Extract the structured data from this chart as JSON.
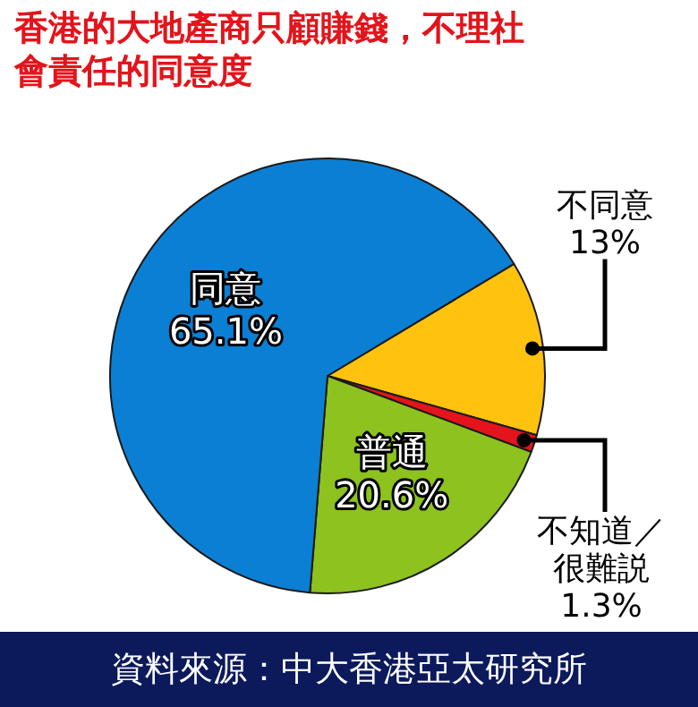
{
  "chart_data": {
    "type": "pie",
    "title": "香港的大地產商只顧賺錢，不理社會責任的同意度",
    "categories": [
      "不同意",
      "不知道／很難説",
      "普通",
      "同意"
    ],
    "values": [
      13,
      1.3,
      20.6,
      65.1
    ],
    "value_labels": [
      "13%",
      "1.3%",
      "20.6%",
      "65.1%"
    ],
    "colors": [
      "#ffc20e",
      "#e3141b",
      "#8dc21f",
      "#0b7fd4"
    ],
    "legend": false,
    "annotations": [
      "資料來源：中大香港亞太研究所"
    ]
  }
}
